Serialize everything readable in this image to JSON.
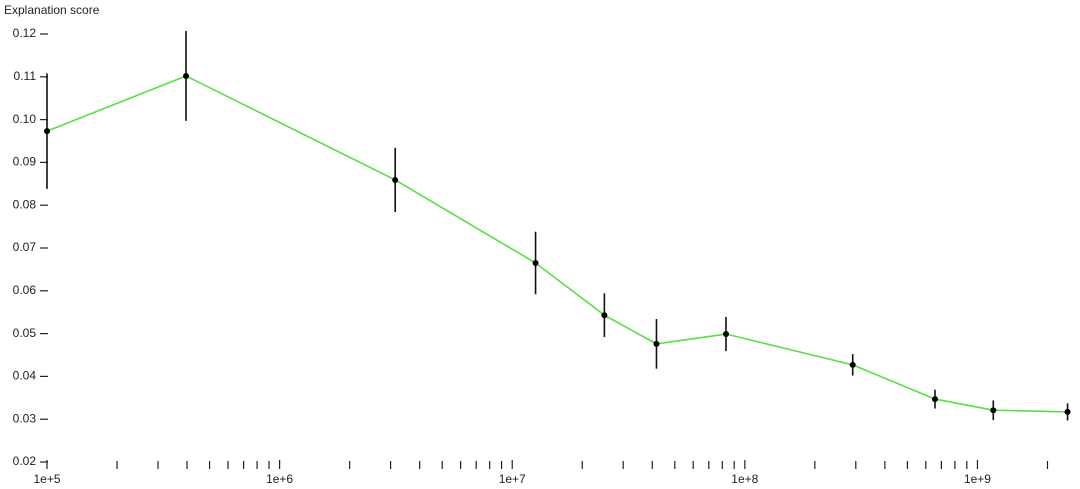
{
  "chart_data": {
    "type": "line",
    "y_label": "Explanation score",
    "x": [
      100000,
      396000,
      3140000,
      12600000,
      24900000,
      41700000,
      83000000,
      291000000,
      657000000,
      1170000000,
      2440000000
    ],
    "series": [
      {
        "color": "#5ade46",
        "values": [
          0.0973,
          0.1102,
          0.0859,
          0.0665,
          0.0543,
          0.0476,
          0.0499,
          0.0427,
          0.0347,
          0.0321,
          0.0317
        ],
        "errors": [
          0.0135,
          0.0105,
          0.0075,
          0.0073,
          0.0051,
          0.0058,
          0.004,
          0.0025,
          0.0022,
          0.0023,
          0.002
        ]
      }
    ],
    "xlog": true,
    "xlim": [
      100000,
      2500000000
    ],
    "xticks": [
      {
        "value": 100000,
        "label": "1e+5"
      },
      {
        "value": 1000000,
        "label": "1e+6"
      },
      {
        "value": 10000000,
        "label": "1e+7"
      },
      {
        "value": 100000000,
        "label": "1e+8"
      },
      {
        "value": 1000000000,
        "label": "1e+9"
      }
    ],
    "xminorticks": [
      200000,
      300000,
      400000,
      500000,
      600000,
      700000,
      800000,
      900000,
      2000000,
      3000000,
      4000000,
      5000000,
      6000000,
      7000000,
      8000000,
      9000000,
      20000000,
      30000000,
      40000000,
      50000000,
      60000000,
      70000000,
      80000000,
      90000000,
      200000000,
      300000000,
      400000000,
      500000000,
      600000000,
      700000000,
      800000000,
      900000000,
      2000000000
    ],
    "ylim": [
      0.02,
      0.12
    ],
    "yticks": [
      0.02,
      0.03,
      0.04,
      0.05,
      0.06,
      0.07,
      0.08,
      0.09,
      {
        "value": 0.1,
        "label": "0.10"
      },
      0.11,
      0.12
    ],
    "marker_color": "#000000"
  }
}
